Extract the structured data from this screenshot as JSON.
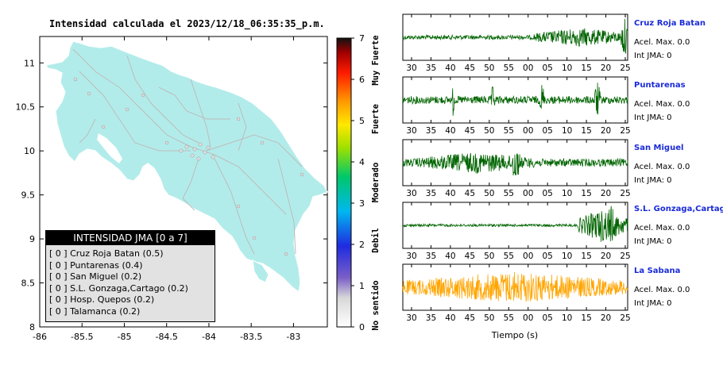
{
  "map": {
    "title": "Intensidad calculada el 2023/12/18_06:35:35_p.m.",
    "x_ticks": [
      -86,
      -85.5,
      -85,
      -84.5,
      -84,
      -83.5,
      -83
    ],
    "y_ticks": [
      8,
      8.5,
      9,
      9.5,
      10,
      10.5,
      11
    ],
    "xlim": [
      -86,
      -82.6
    ],
    "ylim": [
      8,
      11.3
    ],
    "land_color": "#b2ecea"
  },
  "legend": {
    "header": "INTENSIDAD JMA [0 a 7]",
    "items": [
      "[ 0 ]  Cruz Roja Batan (0.5)",
      "[ 0 ]  Puntarenas (0.4)",
      "[ 0 ]  San Miguel (0.2)",
      "[ 0 ]  S.L. Gonzaga,Cartago (0.2)",
      "[ 0 ]  Hosp. Quepos (0.2)",
      "[ 0 ]  Talamanca (0.2)"
    ]
  },
  "colorbar": {
    "ticks": [
      "0",
      "1",
      "2",
      "3",
      "4",
      "5",
      "6",
      "7"
    ],
    "labels": [
      "No sentido",
      "Debil",
      "Moderado",
      "Fuerte",
      "Muy Fuerte"
    ],
    "range": [
      0,
      7
    ]
  },
  "stations": [
    {
      "name": "Cruz Roja Batan",
      "acc": "Acel. Max. 0.0",
      "int": "Int JMA: 0",
      "color": "#006400"
    },
    {
      "name": "Puntarenas",
      "acc": "Acel. Max. 0.0",
      "int": "Int JMA: 0",
      "color": "#006400"
    },
    {
      "name": "San Miguel",
      "acc": "Acel. Max. 0.0",
      "int": "Int JMA: 0",
      "color": "#006400"
    },
    {
      "name": "S.L. Gonzaga,Cartago",
      "acc": "Acel. Max. 0.0",
      "int": "Int JMA: 0",
      "color": "#006400"
    },
    {
      "name": "La Sabana",
      "acc": "Acel. Max. 0.0",
      "int": "Int JMA: 0",
      "color": "#ffa500"
    }
  ],
  "chart_data": [
    {
      "type": "scatter",
      "title": "Intensidad calculada el 2023/12/18_06:35:35_p.m.",
      "xlim": [
        -86,
        -82.6
      ],
      "ylim": [
        8,
        11.3
      ],
      "x_ticks": [
        -86,
        -85.5,
        -85,
        -84.5,
        -84,
        -83.5,
        -83
      ],
      "y_ticks": [
        8,
        8.5,
        9,
        9.5,
        10,
        10.5,
        11
      ],
      "series": [
        {
          "name": "Cruz Roja Batan",
          "intensity": 0,
          "value": 0.5
        },
        {
          "name": "Puntarenas",
          "intensity": 0,
          "value": 0.4
        },
        {
          "name": "San Miguel",
          "intensity": 0,
          "value": 0.2
        },
        {
          "name": "S.L. Gonzaga,Cartago",
          "intensity": 0,
          "value": 0.2
        },
        {
          "name": "Hosp. Quepos",
          "intensity": 0,
          "value": 0.2
        },
        {
          "name": "Talamanca",
          "intensity": 0,
          "value": 0.2
        }
      ]
    },
    {
      "type": "line",
      "xlabel": "Tiempo (s)",
      "x_ticks": [
        "30",
        "35",
        "40",
        "45",
        "50",
        "55",
        "00",
        "05",
        "10",
        "15",
        "20",
        "25"
      ],
      "series": [
        {
          "name": "Cruz Roja Batan",
          "max_acc": 0.0,
          "int_jma": 0
        },
        {
          "name": "Puntarenas",
          "max_acc": 0.0,
          "int_jma": 0
        },
        {
          "name": "San Miguel",
          "max_acc": 0.0,
          "int_jma": 0
        },
        {
          "name": "S.L. Gonzaga,Cartago",
          "max_acc": 0.0,
          "int_jma": 0
        },
        {
          "name": "La Sabana",
          "max_acc": 0.0,
          "int_jma": 0
        }
      ]
    }
  ],
  "waveform": {
    "xlabel": "Tiempo (s)",
    "x_ticks": [
      "30",
      "35",
      "40",
      "45",
      "50",
      "55",
      "00",
      "05",
      "10",
      "15",
      "20",
      "25"
    ]
  }
}
